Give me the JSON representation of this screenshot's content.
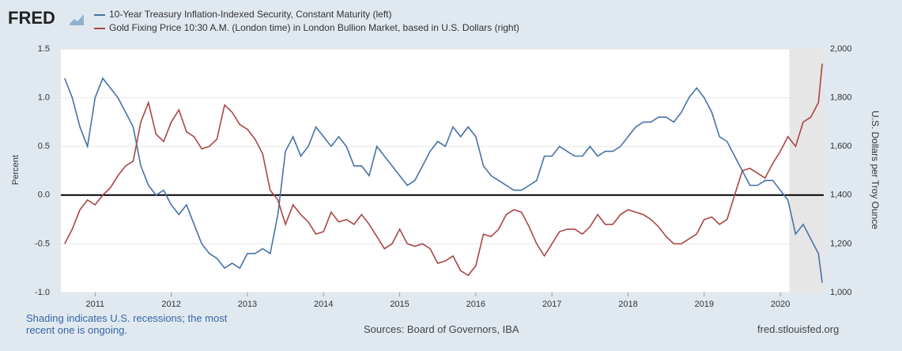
{
  "chart_data": {
    "type": "line",
    "logo": "FRED",
    "y_label": "Percent",
    "y2_label": "U.S. Dollars per Troy Ounce",
    "note": "Shading indicates U.S. recessions; the most recent one is ongoing.",
    "source": "Sources: Board of Governors, IBA",
    "site": "fred.stlouisfed.org",
    "x": [
      2010.6,
      2010.7,
      2010.8,
      2010.9,
      2011.0,
      2011.1,
      2011.2,
      2011.3,
      2011.4,
      2011.5,
      2011.6,
      2011.7,
      2011.8,
      2011.9,
      2012.0,
      2012.1,
      2012.2,
      2012.3,
      2012.4,
      2012.5,
      2012.6,
      2012.7,
      2012.8,
      2012.9,
      2013.0,
      2013.1,
      2013.2,
      2013.3,
      2013.4,
      2013.5,
      2013.6,
      2013.7,
      2013.8,
      2013.9,
      2014.0,
      2014.1,
      2014.2,
      2014.3,
      2014.4,
      2014.5,
      2014.6,
      2014.7,
      2014.8,
      2014.9,
      2015.0,
      2015.1,
      2015.2,
      2015.3,
      2015.4,
      2015.5,
      2015.6,
      2015.7,
      2015.8,
      2015.9,
      2016.0,
      2016.1,
      2016.2,
      2016.3,
      2016.4,
      2016.5,
      2016.6,
      2016.7,
      2016.8,
      2016.9,
      2017.0,
      2017.1,
      2017.2,
      2017.3,
      2017.4,
      2017.5,
      2017.6,
      2017.7,
      2017.8,
      2017.9,
      2018.0,
      2018.1,
      2018.2,
      2018.3,
      2018.4,
      2018.5,
      2018.6,
      2018.7,
      2018.8,
      2018.9,
      2019.0,
      2019.1,
      2019.2,
      2019.3,
      2019.4,
      2019.5,
      2019.6,
      2019.7,
      2019.8,
      2019.9,
      2020.0,
      2020.1,
      2020.2,
      2020.3,
      2020.4,
      2020.5,
      2020.55
    ],
    "series": [
      {
        "name": "10-Year Treasury Inflation-Indexed Security, Constant Maturity (left)",
        "color": "#4572a7",
        "axis": "y",
        "values": [
          1.2,
          1.0,
          0.7,
          0.5,
          1.0,
          1.2,
          1.1,
          1.0,
          0.85,
          0.7,
          0.3,
          0.1,
          0.0,
          0.05,
          -0.1,
          -0.2,
          -0.1,
          -0.3,
          -0.5,
          -0.6,
          -0.65,
          -0.75,
          -0.7,
          -0.75,
          -0.6,
          -0.6,
          -0.55,
          -0.6,
          -0.2,
          0.45,
          0.6,
          0.4,
          0.5,
          0.7,
          0.6,
          0.5,
          0.6,
          0.5,
          0.3,
          0.3,
          0.2,
          0.5,
          0.4,
          0.3,
          0.2,
          0.1,
          0.15,
          0.3,
          0.45,
          0.55,
          0.5,
          0.7,
          0.6,
          0.7,
          0.6,
          0.3,
          0.2,
          0.15,
          0.1,
          0.05,
          0.05,
          0.1,
          0.15,
          0.4,
          0.4,
          0.5,
          0.45,
          0.4,
          0.4,
          0.5,
          0.4,
          0.45,
          0.45,
          0.5,
          0.6,
          0.7,
          0.75,
          0.75,
          0.8,
          0.8,
          0.75,
          0.85,
          1.0,
          1.1,
          1.0,
          0.85,
          0.6,
          0.55,
          0.4,
          0.25,
          0.1,
          0.1,
          0.15,
          0.15,
          0.05,
          -0.05,
          -0.4,
          -0.3,
          -0.45,
          -0.6,
          -0.9
        ]
      },
      {
        "name": "Gold Fixing Price 10:30 A.M. (London time) in London Bullion Market, based in U.S. Dollars (right)",
        "color": "#aa4643",
        "axis": "y2",
        "values": [
          1200,
          1260,
          1340,
          1380,
          1360,
          1400,
          1430,
          1480,
          1520,
          1540,
          1700,
          1780,
          1650,
          1620,
          1700,
          1750,
          1660,
          1640,
          1590,
          1600,
          1630,
          1770,
          1740,
          1690,
          1670,
          1630,
          1570,
          1420,
          1380,
          1280,
          1360,
          1320,
          1290,
          1240,
          1250,
          1330,
          1290,
          1300,
          1280,
          1320,
          1280,
          1230,
          1180,
          1200,
          1260,
          1200,
          1190,
          1200,
          1180,
          1120,
          1130,
          1150,
          1090,
          1070,
          1110,
          1240,
          1230,
          1260,
          1320,
          1340,
          1330,
          1270,
          1200,
          1150,
          1200,
          1250,
          1260,
          1260,
          1240,
          1270,
          1320,
          1280,
          1280,
          1320,
          1340,
          1330,
          1320,
          1300,
          1270,
          1230,
          1200,
          1200,
          1220,
          1240,
          1300,
          1310,
          1280,
          1300,
          1400,
          1500,
          1510,
          1490,
          1470,
          1530,
          1580,
          1640,
          1600,
          1700,
          1720,
          1780,
          1940
        ]
      }
    ],
    "recession": [
      2020.12,
      2020.57
    ],
    "hline": 0,
    "xlim": [
      2010.55,
      2020.57
    ],
    "xticks": [
      2011,
      2012,
      2013,
      2014,
      2015,
      2016,
      2017,
      2018,
      2019,
      2020
    ],
    "ylim": [
      -1,
      1.5
    ],
    "yticks": [
      {
        "value": -1,
        "label": "-1.0"
      },
      -0.5,
      {
        "value": 0,
        "label": "0.0"
      },
      0.5,
      {
        "value": 1,
        "label": "1.0"
      },
      1.5
    ],
    "y2lim": [
      1000,
      2000
    ],
    "y2ticks": [
      {
        "value": 1000,
        "label": "1,000"
      },
      {
        "value": 1200,
        "label": "1,200"
      },
      {
        "value": 1400,
        "label": "1,400"
      },
      {
        "value": 1600,
        "label": "1,600"
      },
      {
        "value": 1800,
        "label": "1,800"
      },
      {
        "value": 2000,
        "label": "2,000"
      }
    ]
  }
}
